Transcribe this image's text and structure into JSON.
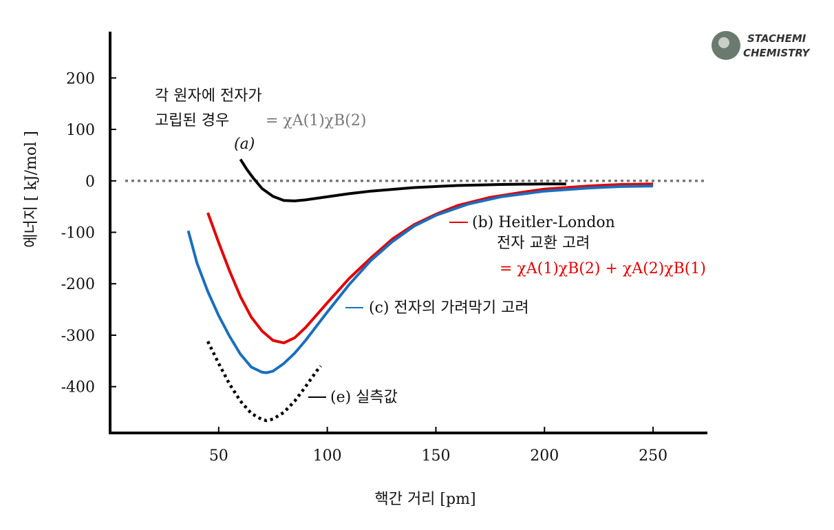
{
  "chart_data": {
    "type": "line",
    "xlabel": "핵간 거리 [pm]",
    "ylabel": "에너지 [ kJ/mol ]",
    "xlim": [
      0,
      275
    ],
    "ylim": [
      -490,
      290
    ],
    "x_ticks": [
      50,
      100,
      150,
      200,
      250
    ],
    "y_ticks": [
      200,
      100,
      0,
      -100,
      -200,
      -300,
      -400
    ],
    "x_tick_labels": [
      "50",
      "100",
      "150",
      "200",
      "250"
    ],
    "y_tick_labels": [
      "200",
      "100",
      "0",
      "-100",
      "-200",
      "-300",
      "-400"
    ],
    "zero_line": {
      "y": 0,
      "color": "#777777",
      "style": "dotted"
    },
    "series": [
      {
        "color": "#000000",
        "style": "solid",
        "x": [
          60,
          63,
          66,
          70,
          75,
          80,
          85,
          90,
          100,
          110,
          120,
          140,
          160,
          180,
          200,
          210
        ],
        "y": [
          42,
          22,
          5,
          -15,
          -30,
          -38,
          -39,
          -37,
          -31,
          -25,
          -20,
          -13,
          -9,
          -7,
          -6,
          -6
        ]
      },
      {
        "color": "#e30000",
        "style": "solid",
        "x": [
          45,
          50,
          55,
          60,
          65,
          70,
          75,
          80,
          85,
          90,
          100,
          110,
          120,
          130,
          140,
          150,
          160,
          175,
          190,
          200,
          220,
          235,
          250
        ],
        "y": [
          -62,
          -120,
          -175,
          -225,
          -265,
          -292,
          -310,
          -315,
          -305,
          -285,
          -237,
          -190,
          -150,
          -113,
          -85,
          -65,
          -48,
          -32,
          -22,
          -16,
          -10,
          -7,
          -6
        ]
      },
      {
        "color": "#1a6fbe",
        "style": "solid",
        "x": [
          36,
          40,
          45,
          50,
          55,
          60,
          65,
          70,
          72,
          75,
          80,
          85,
          90,
          100,
          110,
          120,
          130,
          140,
          150,
          165,
          180,
          200,
          220,
          235,
          250
        ],
        "y": [
          -97,
          -160,
          -215,
          -262,
          -302,
          -337,
          -362,
          -372,
          -373,
          -370,
          -355,
          -335,
          -310,
          -255,
          -202,
          -155,
          -118,
          -88,
          -67,
          -45,
          -31,
          -20,
          -14,
          -11,
          -10
        ]
      },
      {
        "color": "#000000",
        "style": "dotted",
        "x": [
          45,
          50,
          55,
          60,
          65,
          70,
          72,
          75,
          80,
          85,
          90,
          95,
          97
        ],
        "y": [
          -312,
          -355,
          -395,
          -428,
          -452,
          -464,
          -466,
          -463,
          -450,
          -428,
          -400,
          -370,
          -360
        ]
      }
    ],
    "annotations": {
      "a_line1": "각 원자에 전자가",
      "a_line2": "고립된 경우",
      "a_formula": "= χA(1)χB(2)",
      "a_label": "(a)",
      "b_label": "(b) Heitler-London",
      "b_line2": "전자 교환 고려",
      "b_formula": "= χA(1)χB(2) + χA(2)χB(1)",
      "c_label": "(c) 전자의 가려막기 고려",
      "e_label": "(e) 실측값"
    }
  },
  "logo": {
    "line1": "STACHEMI",
    "line2": "CHEMISTRY"
  }
}
